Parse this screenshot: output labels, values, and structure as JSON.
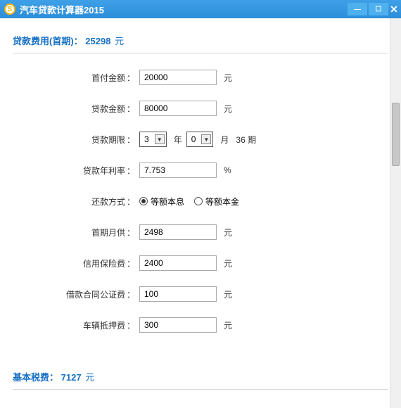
{
  "window": {
    "title": "汽车贷款计算器2015",
    "icon_glyph": "S"
  },
  "section_fee": {
    "label": "贷款费用(首期)：",
    "value": "25298",
    "unit": "元"
  },
  "form": {
    "down_payment": {
      "label": "首付金额",
      "value": "20000",
      "unit": "元"
    },
    "loan_amount": {
      "label": "贷款金额",
      "value": "80000",
      "unit": "元"
    },
    "loan_term": {
      "label": "贷款期限",
      "years": "3",
      "year_unit": "年",
      "months": "0",
      "month_unit": "月",
      "total": "36 期"
    },
    "annual_rate": {
      "label": "贷款年利率",
      "value": "7.753",
      "unit": "%"
    },
    "repay_method": {
      "label": "还款方式",
      "opt_equal_installment": "等额本息",
      "opt_equal_principal": "等额本金",
      "selected": "equal_installment"
    },
    "first_monthly": {
      "label": "首期月供",
      "value": "2498",
      "unit": "元"
    },
    "credit_ins": {
      "label": "信用保险费",
      "value": "2400",
      "unit": "元"
    },
    "notary_fee": {
      "label": "借款合同公证费",
      "value": "100",
      "unit": "元"
    },
    "mortgage_fee": {
      "label": "车辆抵押费",
      "value": "300",
      "unit": "元"
    }
  },
  "section_tax": {
    "label": "基本税费：",
    "value": "7127",
    "unit": "元"
  },
  "colon": "："
}
